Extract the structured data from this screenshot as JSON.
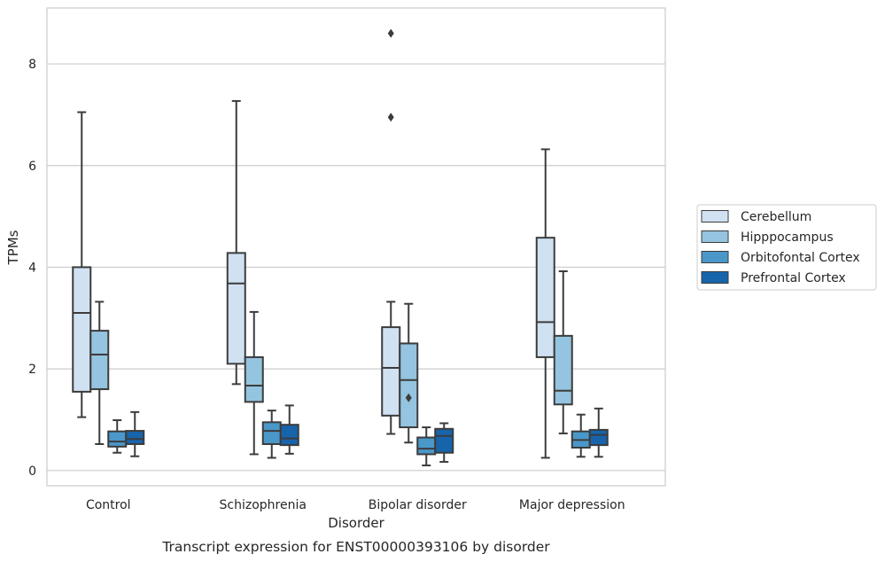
{
  "chart_data": {
    "type": "box",
    "caption": "Transcript expression for ENST00000393106 by disorder",
    "xlabel": "Disorder",
    "ylabel": "TPMs",
    "ylim": [
      -0.3,
      9.1
    ],
    "yticks": [
      0,
      2,
      4,
      6,
      8
    ],
    "grid": "y",
    "legend_placement": "right",
    "categories": [
      "Control",
      "Schizophrenia",
      "Bipolar disorder",
      "Major depression"
    ],
    "series": [
      {
        "name": "Cerebellum",
        "color": "#d0e1f2",
        "boxes": [
          {
            "min": 1.05,
            "q1": 1.55,
            "median": 3.1,
            "q3": 4.0,
            "max": 7.05,
            "outliers": []
          },
          {
            "min": 1.7,
            "q1": 2.1,
            "median": 3.68,
            "q3": 4.28,
            "max": 7.27,
            "outliers": []
          },
          {
            "min": 0.72,
            "q1": 1.08,
            "median": 2.02,
            "q3": 2.82,
            "max": 3.32,
            "outliers": [
              6.95,
              8.6
            ]
          },
          {
            "min": 0.25,
            "q1": 2.23,
            "median": 2.92,
            "q3": 4.58,
            "max": 6.32,
            "outliers": []
          }
        ]
      },
      {
        "name": "Hipppocampus",
        "color": "#94c4df",
        "boxes": [
          {
            "min": 0.52,
            "q1": 1.6,
            "median": 2.28,
            "q3": 2.75,
            "max": 3.32,
            "outliers": []
          },
          {
            "min": 0.32,
            "q1": 1.35,
            "median": 1.67,
            "q3": 2.23,
            "max": 3.12,
            "outliers": []
          },
          {
            "min": 0.55,
            "q1": 0.85,
            "median": 1.78,
            "q3": 2.5,
            "max": 3.28,
            "outliers": [
              1.43
            ]
          },
          {
            "min": 0.73,
            "q1": 1.3,
            "median": 1.57,
            "q3": 2.65,
            "max": 3.92,
            "outliers": []
          }
        ]
      },
      {
        "name": "Orbitofontal Cortex",
        "color": "#4a98c9",
        "boxes": [
          {
            "min": 0.35,
            "q1": 0.47,
            "median": 0.57,
            "q3": 0.77,
            "max": 0.99,
            "outliers": []
          },
          {
            "min": 0.25,
            "q1": 0.52,
            "median": 0.78,
            "q3": 0.95,
            "max": 1.18,
            "outliers": []
          },
          {
            "min": 0.1,
            "q1": 0.32,
            "median": 0.43,
            "q3": 0.65,
            "max": 0.85,
            "outliers": []
          },
          {
            "min": 0.27,
            "q1": 0.45,
            "median": 0.6,
            "q3": 0.77,
            "max": 1.1,
            "outliers": []
          }
        ]
      },
      {
        "name": "Prefrontal Cortex",
        "color": "#1764ab",
        "boxes": [
          {
            "min": 0.28,
            "q1": 0.52,
            "median": 0.62,
            "q3": 0.78,
            "max": 1.15,
            "outliers": []
          },
          {
            "min": 0.33,
            "q1": 0.5,
            "median": 0.63,
            "q3": 0.9,
            "max": 1.28,
            "outliers": []
          },
          {
            "min": 0.17,
            "q1": 0.35,
            "median": 0.68,
            "q3": 0.82,
            "max": 0.93,
            "outliers": []
          },
          {
            "min": 0.27,
            "q1": 0.5,
            "median": 0.7,
            "q3": 0.8,
            "max": 1.22,
            "outliers": []
          }
        ]
      }
    ]
  }
}
